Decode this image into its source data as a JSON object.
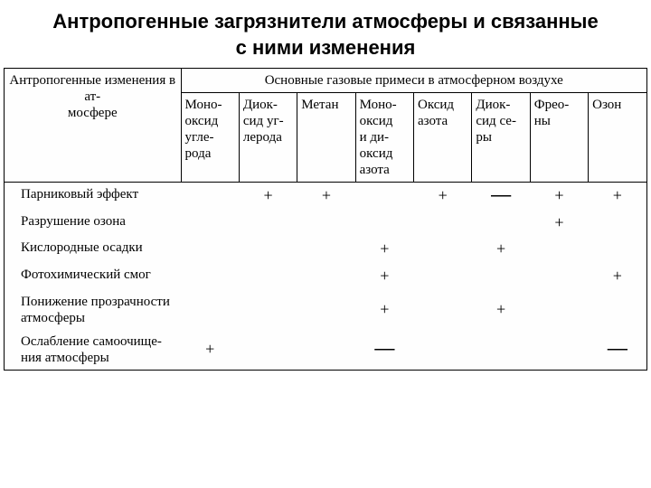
{
  "title_line1": "Антропогенные загрязнители атмосферы и связанные",
  "title_line2": "с ними изменения",
  "table": {
    "left_header": "Антропогенные изменения в ат-\nмосфере",
    "top_header": "Основные газовые примеси в атмосферном воздухе",
    "columns": [
      "Моно-\nоксид\nугле-\nрода",
      "Диок-\nсид уг-\nлерода",
      "Метан",
      "Моно-\nоксид\nи ди-\nоксид\nазота",
      "Оксид\nазота",
      "Диок-\nсид се-\nры",
      "Фрео-\nны",
      "Озон"
    ],
    "rows": [
      {
        "label": "Парниковый эффект",
        "cells": [
          "",
          "+",
          "+",
          "",
          "+",
          "—",
          "+",
          "+"
        ]
      },
      {
        "label": "Разрушение озона",
        "cells": [
          "",
          "",
          "",
          "",
          "",
          "",
          "+",
          ""
        ]
      },
      {
        "label": "Кислородные осадки",
        "cells": [
          "",
          "",
          "",
          "+",
          "",
          "+",
          "",
          ""
        ]
      },
      {
        "label": "Фотохимический смог",
        "cells": [
          "",
          "",
          "",
          "+",
          "",
          "",
          "",
          "+"
        ]
      },
      {
        "label": "Понижение прозрачности атмосферы",
        "cells": [
          "",
          "",
          "",
          "+",
          "",
          "+",
          "",
          ""
        ]
      },
      {
        "label": "Ослабление самоочище-\nния атмосферы",
        "cells": [
          "+",
          "",
          "",
          "—",
          "",
          "",
          "",
          "—"
        ]
      }
    ]
  },
  "colors": {
    "text": "#000000",
    "bg": "#ffffff",
    "border": "#000000"
  }
}
